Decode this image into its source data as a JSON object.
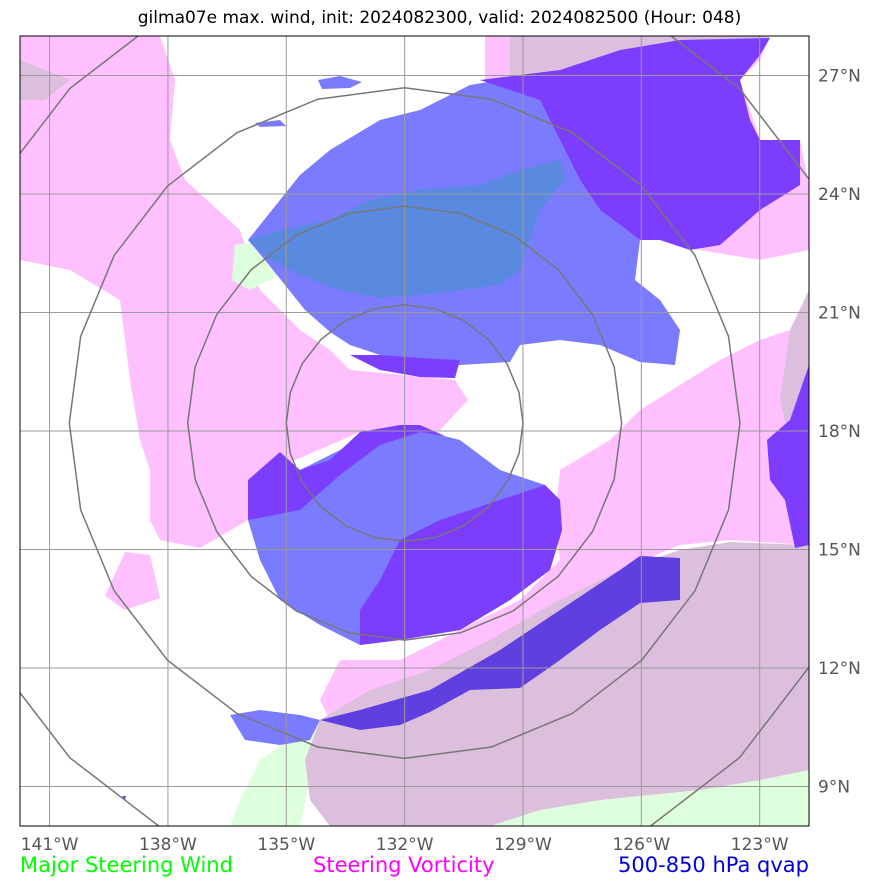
{
  "title": "gilma07e max. wind, init: 2024082300, valid: 2024082500 (Hour: 048)",
  "map": {
    "lon_range": [
      -141.75,
      -121.75
    ],
    "lat_range": [
      8.0,
      28.0
    ],
    "lon_ticks": [
      -141,
      -138,
      -135,
      -132,
      -129,
      -126,
      -123
    ],
    "lat_ticks": [
      9,
      12,
      15,
      18,
      21,
      24,
      27
    ],
    "lon_tick_labels": [
      "141°W",
      "138°W",
      "135°W",
      "132°W",
      "129°W",
      "126°W",
      "123°W"
    ],
    "lat_tick_labels": [
      "9°N",
      "12°N",
      "15°N",
      "18°N",
      "21°N",
      "24°N",
      "27°N"
    ],
    "gridlines": true,
    "range_rings": {
      "center": [
        -132.0,
        18.2
      ],
      "radii_deg": [
        3.0,
        5.5,
        8.5,
        12.0
      ]
    }
  },
  "legend": [
    {
      "label": "Major Steering Wind",
      "color": "#00ff00"
    },
    {
      "label": "Steering Vorticity",
      "color": "#ff00ff"
    },
    {
      "label": "500-850 hPa qvap",
      "color": "#0000dd"
    }
  ],
  "colors": {
    "vorticity_fill": "#ffc0ff",
    "wind_fill": "#ddffdd",
    "overlap_fill": "#dcbfdc",
    "qvap_light": "#7b7bff",
    "qvap_dark": "#7c3dff",
    "qvap_overlap": "#5a8ae0",
    "qvap_deep": "#5f3fe0"
  }
}
